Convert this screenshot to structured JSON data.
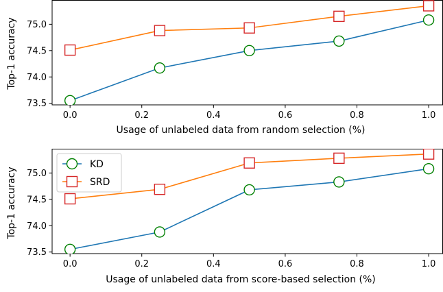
{
  "chart_data": [
    {
      "type": "line",
      "xlabel": "Usage of unlabeled data from random selection (%)",
      "ylabel": "Top-1 accuracy",
      "xlim": [
        -0.05,
        1.04
      ],
      "ylim": [
        73.47,
        75.46
      ],
      "xticks": [
        "0.0",
        "0.2",
        "0.4",
        "0.6",
        "0.8",
        "1.0"
      ],
      "yticks": [
        "73.5",
        "74.0",
        "74.5",
        "75.0"
      ],
      "grid": false,
      "legend": null,
      "x": [
        0.0,
        0.25,
        0.5,
        0.75,
        1.0
      ],
      "series": [
        {
          "name": "KD",
          "values": [
            73.55,
            74.17,
            74.5,
            74.68,
            75.08
          ],
          "color": "#1f77b4",
          "marker": "circle",
          "marker_edge": "#008000"
        },
        {
          "name": "SRD",
          "values": [
            74.51,
            74.88,
            74.93,
            75.15,
            75.35
          ],
          "color": "#ff7f0e",
          "marker": "square",
          "marker_edge": "#d62728"
        }
      ]
    },
    {
      "type": "line",
      "xlabel": "Usage of unlabeled data from score-based selection (%)",
      "ylabel": "Top-1 accuracy",
      "xlim": [
        -0.05,
        1.04
      ],
      "ylim": [
        73.47,
        75.46
      ],
      "xticks": [
        "0.0",
        "0.2",
        "0.4",
        "0.6",
        "0.8",
        "1.0"
      ],
      "yticks": [
        "73.5",
        "74.0",
        "74.5",
        "75.0"
      ],
      "grid": false,
      "legend": "upper-left",
      "x": [
        0.0,
        0.25,
        0.5,
        0.75,
        1.0
      ],
      "series": [
        {
          "name": "KD",
          "values": [
            73.55,
            73.88,
            74.68,
            74.83,
            75.08
          ],
          "color": "#1f77b4",
          "marker": "circle",
          "marker_edge": "#008000"
        },
        {
          "name": "SRD",
          "values": [
            74.51,
            74.69,
            75.19,
            75.28,
            75.36
          ],
          "color": "#ff7f0e",
          "marker": "square",
          "marker_edge": "#d62728"
        }
      ]
    }
  ]
}
